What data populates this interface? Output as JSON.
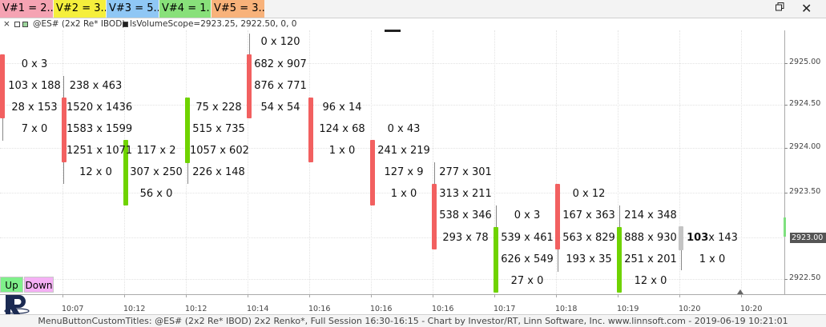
{
  "tabs": [
    {
      "label": "V#1 = 2...",
      "color": "#f5a3b3"
    },
    {
      "label": "V#2 = 3...",
      "color": "#f5ef3c"
    },
    {
      "label": "V#3 = 5...",
      "color": "#8fc7f5"
    },
    {
      "label": "V#4 = 1...",
      "color": "#88e07a"
    },
    {
      "label": "V#5 = 3...",
      "color": "#f8b27a"
    }
  ],
  "window": {
    "restore_icon": "restore-icon",
    "close_icon": "close-icon"
  },
  "subbar": {
    "close_glyph": "×",
    "symbol": "@ES# (2x2 Re* IBOD)",
    "study": "lsVolumeScope=2923.25, 2922.50, 0, 0"
  },
  "y_axis": {
    "labels": [
      "2925.00",
      "2924.50",
      "2924.00",
      "2923.50",
      "2923.00",
      "2922.50"
    ],
    "current_price": "2923.00"
  },
  "x_axis": {
    "labels": [
      "10:07",
      "10:12",
      "10:12",
      "10:14",
      "10:16",
      "10:16",
      "10:16",
      "10:17",
      "10:18",
      "10:19",
      "10:20",
      "10:20"
    ]
  },
  "bricks": [
    {
      "direction": "down",
      "rows": [
        "0 x 3",
        "103 x 188",
        "28 x 153",
        "7 x 0"
      ]
    },
    {
      "direction": "down",
      "rows": [
        "238 x 463",
        "1520 x 1436",
        "1583 x 1599",
        "1251 x 1071",
        "12 x 0"
      ]
    },
    {
      "direction": "up",
      "rows": [
        "117 x 2",
        "307 x 250",
        "56 x 0"
      ]
    },
    {
      "direction": "up",
      "rows": [
        "75 x 228",
        "515 x 735",
        "1057 x 602",
        "226 x 148"
      ]
    },
    {
      "direction": "down",
      "rows": [
        "0 x 120",
        "682 x 907",
        "876 x 771",
        "54 x 54"
      ]
    },
    {
      "direction": "down",
      "rows": [
        "96 x 14",
        "124 x 68",
        "1 x 0"
      ]
    },
    {
      "direction": "down",
      "rows": [
        "0 x 43",
        "241 x 219",
        "127 x 9",
        "1 x 0"
      ]
    },
    {
      "direction": "down",
      "rows": [
        "277 x 301",
        "313 x 211",
        "538 x 346",
        "293 x 78"
      ]
    },
    {
      "direction": "up",
      "rows": [
        "0 x 3",
        "539 x 461",
        "626 x 549",
        "27 x 0"
      ]
    },
    {
      "direction": "down",
      "rows": [
        "0 x 12",
        "167 x 363",
        "563 x 829",
        "193 x 35"
      ]
    },
    {
      "direction": "up",
      "rows": [
        "214 x 348",
        "888 x 930",
        "251 x 201",
        "12 x 0"
      ]
    },
    {
      "direction": "neutral",
      "rows": [
        "103",
        "x 143",
        "1 x 0"
      ]
    }
  ],
  "buttons": {
    "up": "Up",
    "down": "Down"
  },
  "status": "MenuButtonCustomTitles: @ES# (2x2 Re* IBOD) 2x2 Renko*, Full Session 16:30-16:15 - Chart by Investor/RT, Linn Software, Inc. www.linnsoft.com - 2019-06-19 10:21:01",
  "colors": {
    "up": "#6fd300",
    "down": "#f26060",
    "neutral": "#c4c4c4"
  }
}
